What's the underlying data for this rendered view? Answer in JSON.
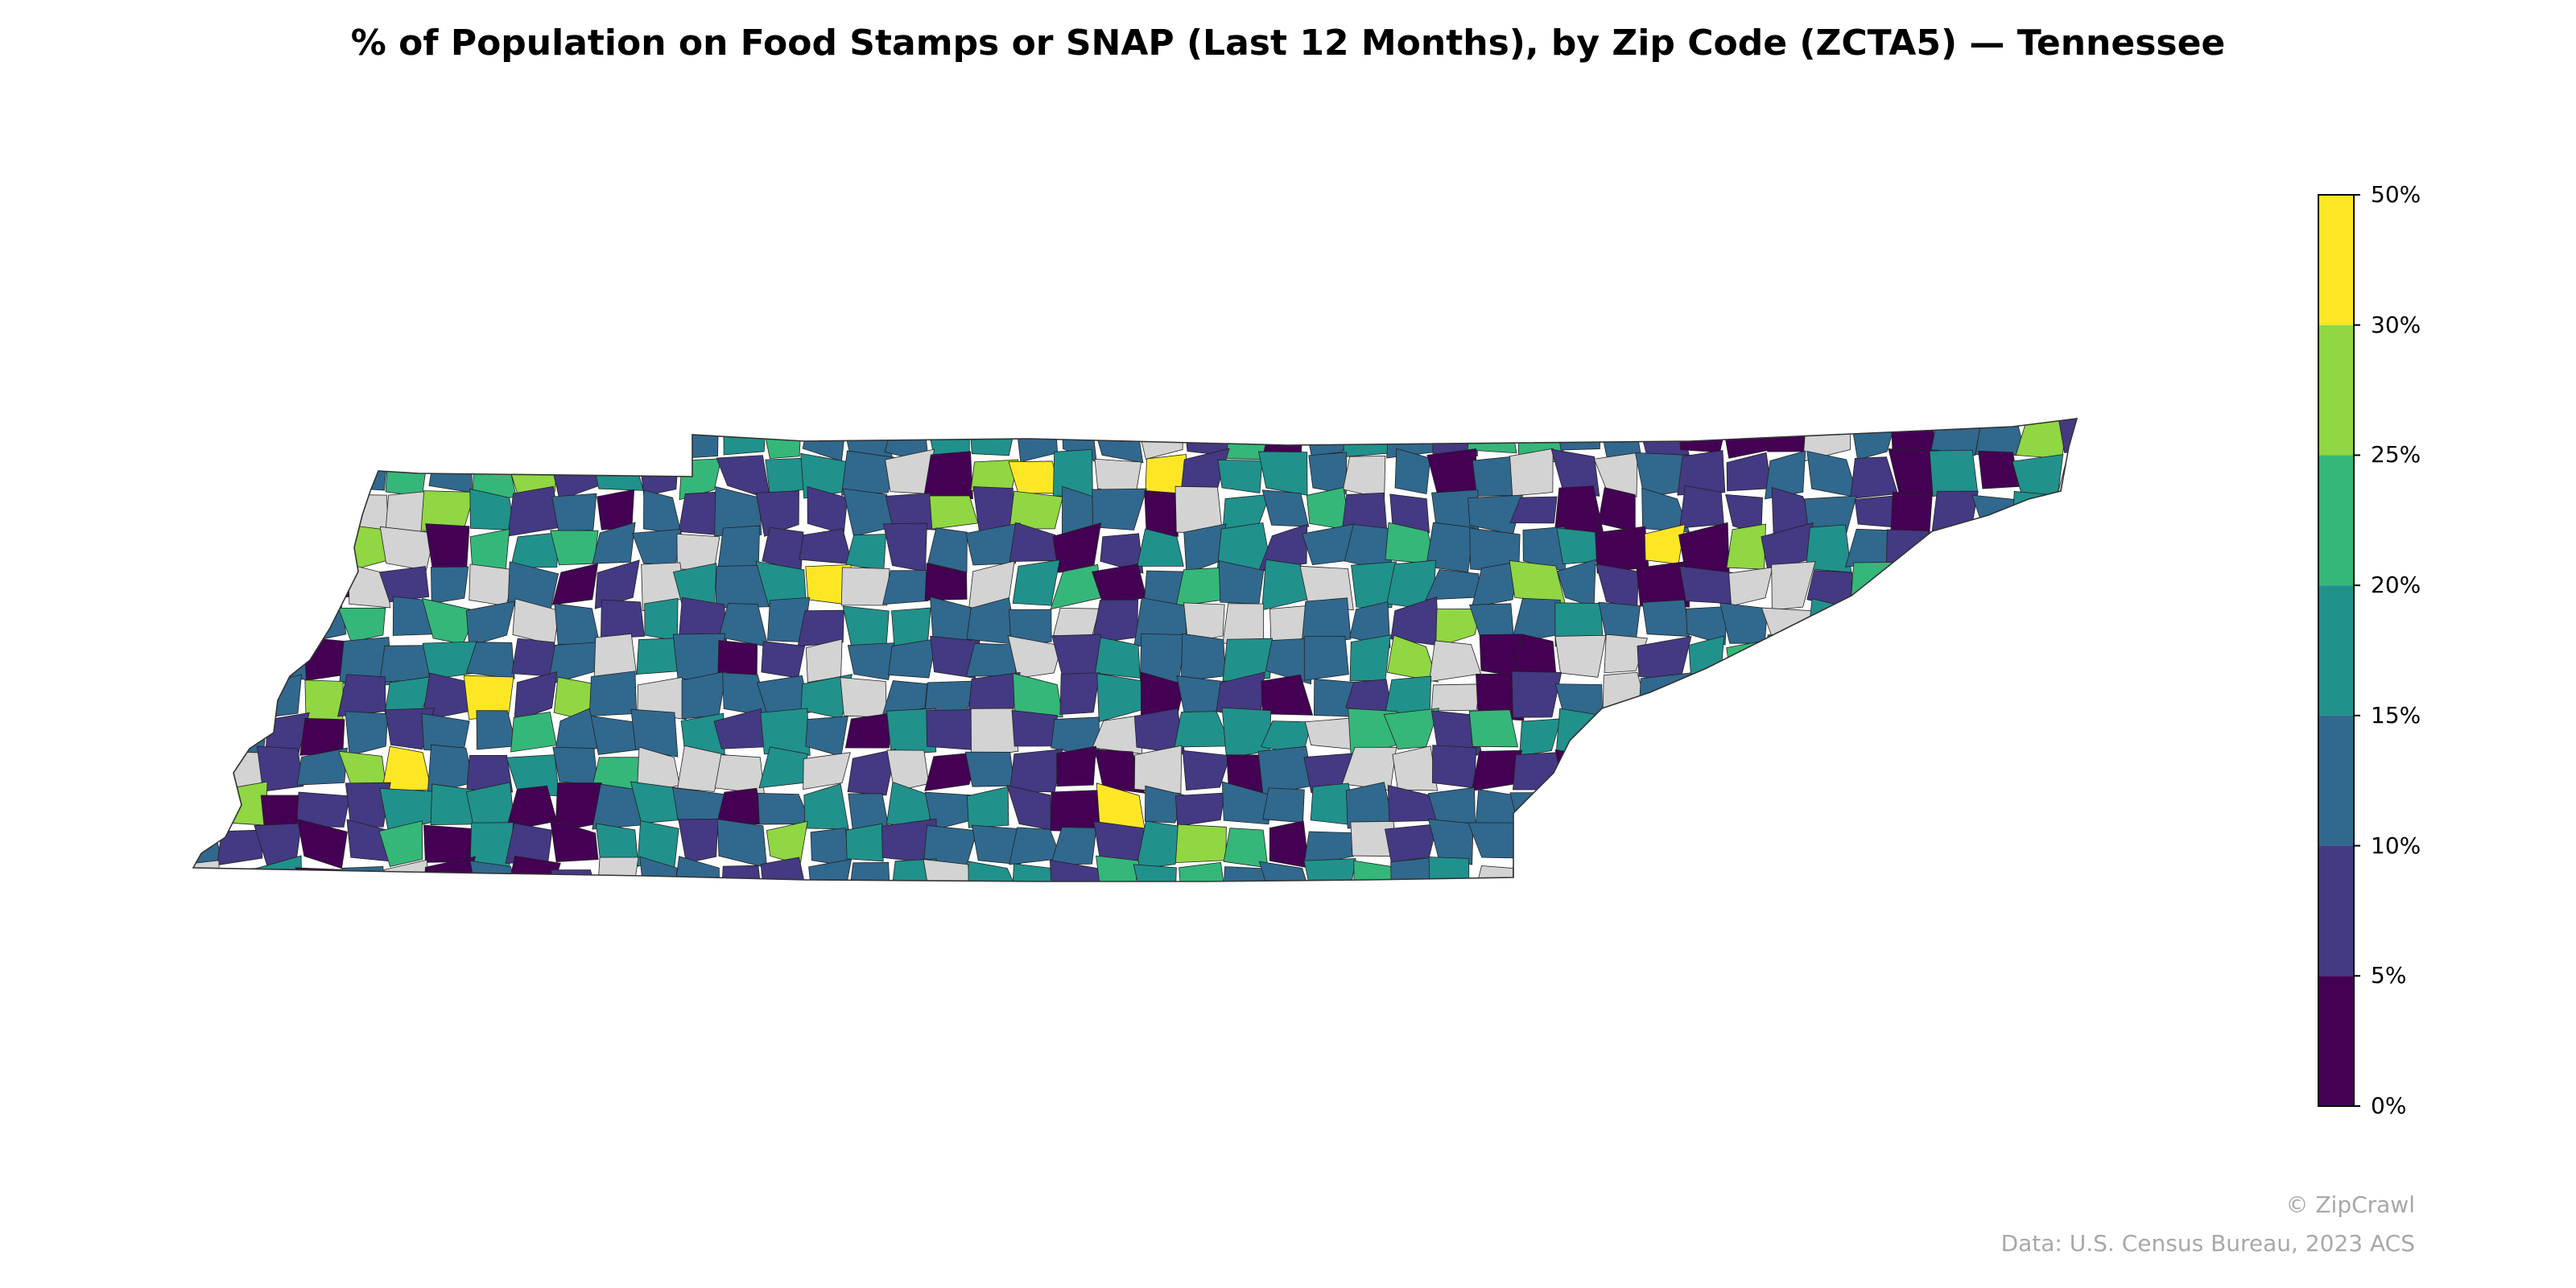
{
  "title": "% of Population on Food Stamps or SNAP (Last 12 Months), by Zip Code (ZCTA5) — Tennessee",
  "map": {
    "region": "Tennessee",
    "geography": "ZCTA5",
    "no_data_color": "#d3d3d3",
    "border_color": "#333333"
  },
  "colorbar": {
    "bins": [
      {
        "min": 0,
        "max": 5,
        "color": "#440154"
      },
      {
        "min": 5,
        "max": 10,
        "color": "#443983"
      },
      {
        "min": 10,
        "max": 15,
        "color": "#31688e"
      },
      {
        "min": 15,
        "max": 20,
        "color": "#21918c"
      },
      {
        "min": 20,
        "max": 25,
        "color": "#35b779"
      },
      {
        "min": 25,
        "max": 30,
        "color": "#90d743"
      },
      {
        "min": 30,
        "max": 50,
        "color": "#fde725"
      }
    ],
    "tick_labels": [
      "0%",
      "5%",
      "10%",
      "15%",
      "20%",
      "25%",
      "30%",
      "50%"
    ]
  },
  "credits": {
    "brand": "© ZipCrawl",
    "source": "Data: U.S. Census Bureau, 2023 ACS"
  }
}
